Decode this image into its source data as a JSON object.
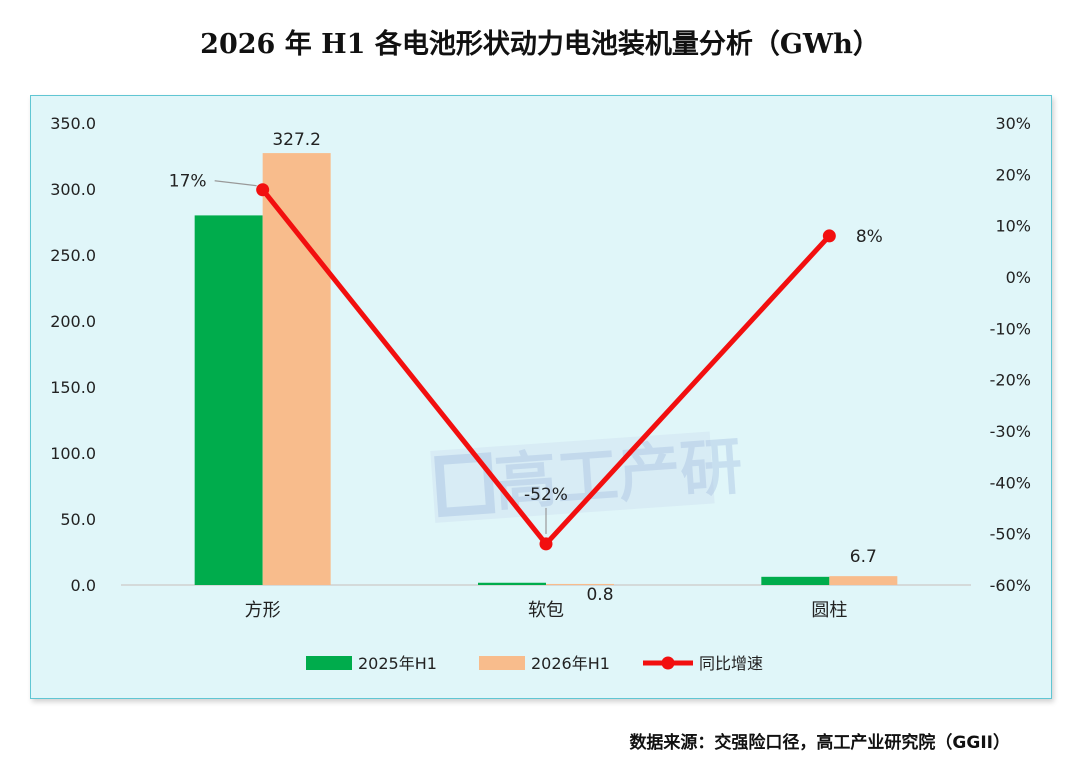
{
  "title": "2026 年 H1 各电池形状动力电池装机量分析（GWh）",
  "source": "数据来源：交强险口径，高工产业研究院（GGII）",
  "watermark": "高工产研",
  "colors": {
    "series_2025": "#00ac4c",
    "series_2026": "#f8bc8c",
    "growth": "#f20f0f",
    "background": "#e0f6f9",
    "border": "#60c6d3"
  },
  "chart_data": {
    "type": "bar",
    "categories": [
      "方形",
      "软包",
      "圆柱"
    ],
    "series": [
      {
        "name": "2025年H1",
        "type": "bar",
        "axis": "left",
        "values": [
          280.0,
          1.7,
          6.2
        ]
      },
      {
        "name": "2026年H1",
        "type": "bar",
        "axis": "left",
        "values": [
          327.2,
          0.8,
          6.7
        ],
        "labels": [
          "327.2",
          "0.8",
          "6.7"
        ]
      },
      {
        "name": "同比增速",
        "type": "line",
        "axis": "right",
        "values": [
          17,
          -52,
          8
        ],
        "labels": [
          "17%",
          "-52%",
          "8%"
        ]
      }
    ],
    "y_left": {
      "min": 0,
      "max": 350,
      "ticks": [
        "350.0",
        "300.0",
        "250.0",
        "200.0",
        "150.0",
        "100.0",
        "50.0",
        "0.0"
      ]
    },
    "y_right": {
      "min": -60,
      "max": 30,
      "ticks": [
        "30%",
        "20%",
        "10%",
        "0%",
        "-10%",
        "-20%",
        "-30%",
        "-40%",
        "-50%",
        "-60%"
      ]
    },
    "grid": false,
    "legend": "bottom"
  }
}
